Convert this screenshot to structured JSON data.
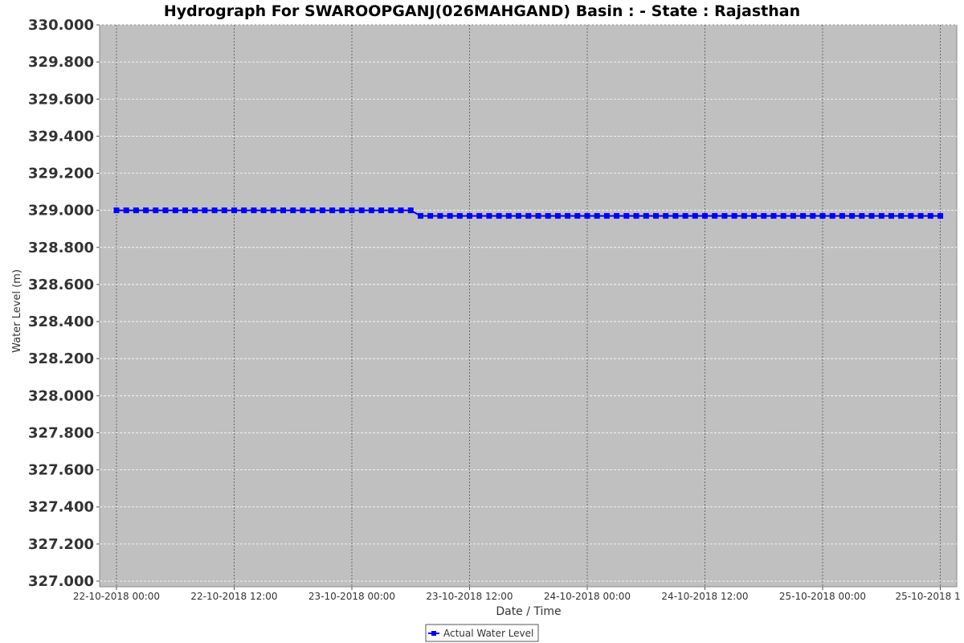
{
  "chart_data": {
    "type": "line",
    "title": "Hydrograph For SWAROOPGANJ(026MAHGAND) Basin : - State : Rajasthan",
    "xlabel": "Date / Time",
    "ylabel": "Water Level (m)",
    "ylim": [
      327.0,
      330.0
    ],
    "yticks": [
      "330.000",
      "329.800",
      "329.600",
      "329.400",
      "329.200",
      "329.000",
      "328.800",
      "328.600",
      "328.400",
      "328.200",
      "328.000",
      "327.800",
      "327.600",
      "327.400",
      "327.200",
      "327.000"
    ],
    "xticks": [
      "22-10-2018 00:00",
      "22-10-2018 12:00",
      "23-10-2018 00:00",
      "23-10-2018 12:00",
      "24-10-2018 00:00",
      "24-10-2018 12:00",
      "25-10-2018 00:00",
      "25-10-2018 1"
    ],
    "grid": true,
    "legend_position": "bottom-center",
    "series": [
      {
        "name": "Actual Water Level",
        "color": "#0000ff",
        "marker": "square",
        "segments": [
          {
            "from": "22-10-2018 00:00",
            "to": "23-10-2018 06:00",
            "interval_hours": 1,
            "value": 329.0
          },
          {
            "from": "23-10-2018 07:00",
            "to": "25-10-2018 12:00",
            "interval_hours": 1,
            "value": 328.97
          }
        ]
      }
    ]
  }
}
